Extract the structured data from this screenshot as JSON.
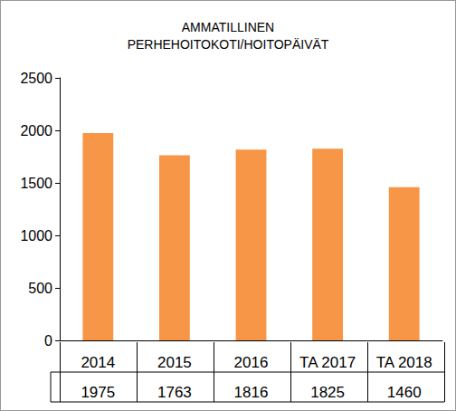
{
  "chart_data": {
    "type": "bar",
    "title": "AMMATILLINEN\nPERHEHOITOKOTI/HOITOPÄIVÄT",
    "categories": [
      "2014",
      "2015",
      "2016",
      "TA 2017",
      "TA 2018"
    ],
    "values": [
      1975,
      1763,
      1816,
      1825,
      1460
    ],
    "color": "#f79646",
    "ylim": [
      0,
      2500
    ],
    "yticks": [
      0,
      500,
      1000,
      1500,
      2000,
      2500
    ],
    "grid": false,
    "data_labels": true
  }
}
